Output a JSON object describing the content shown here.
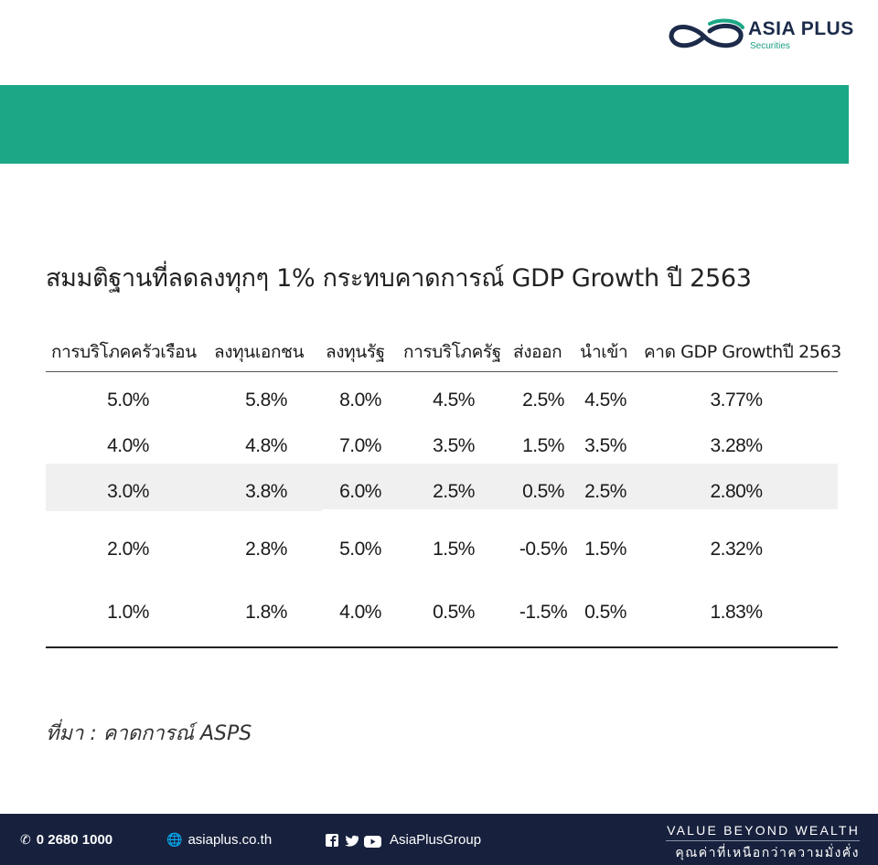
{
  "brand": {
    "name": "ASIA PLUS",
    "sub": "Securities",
    "colors": {
      "navy": "#1c2b4a",
      "green": "#1aa886",
      "footer": "#17213d"
    }
  },
  "title": "สมมติฐานที่ลดลงทุกๆ 1% กระทบคาดการณ์ GDP Growth ปี 2563",
  "table": {
    "headers": [
      "การบริโภคครัวเรือน",
      "ลงทุนเอกชน",
      "ลงทุนรัฐ",
      "การบริโภครัฐ",
      "ส่งออก",
      "นำเข้า",
      "คาด GDP Growthปี 2563"
    ],
    "rows": [
      [
        "5.0%",
        "5.8%",
        "8.0%",
        "4.5%",
        "2.5%",
        "4.5%",
        "3.77%"
      ],
      [
        "4.0%",
        "4.8%",
        "7.0%",
        "3.5%",
        "1.5%",
        "3.5%",
        "3.28%"
      ],
      [
        "3.0%",
        "3.8%",
        "6.0%",
        "2.5%",
        "0.5%",
        "2.5%",
        "2.80%"
      ],
      [
        "2.0%",
        "2.8%",
        "5.0%",
        "1.5%",
        "-0.5%",
        "1.5%",
        "2.32%"
      ],
      [
        "1.0%",
        "1.8%",
        "4.0%",
        "0.5%",
        "-1.5%",
        "0.5%",
        "1.83%"
      ]
    ]
  },
  "source": "ที่มา : คาดการณ์ ASPS",
  "footer": {
    "phone": "0 2680 1000",
    "website": "asiaplus.co.th",
    "social": "AsiaPlusGroup",
    "tagline_en": "VALUE BEYOND WEALTH",
    "tagline_th": "คุณค่าที่เหนือกว่าความมั่งคั่ง",
    "icons": [
      "phone-icon",
      "globe-icon",
      "facebook-icon",
      "twitter-icon",
      "youtube-icon"
    ]
  }
}
